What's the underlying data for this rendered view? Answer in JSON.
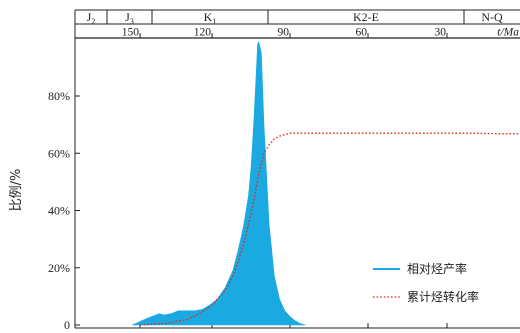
{
  "chart_data": {
    "type": "area",
    "ylabel": "比例/%",
    "x_unit_label": "t/Ma",
    "x_axis_reversed": true,
    "xlim": [
      175,
      0
    ],
    "ylim": [
      0,
      100
    ],
    "x_ticks": [
      150,
      120,
      90,
      60,
      30
    ],
    "y_ticks": [
      {
        "value": 0,
        "label": "0"
      },
      {
        "value": 20,
        "label": "20%"
      },
      {
        "value": 40,
        "label": "40%"
      },
      {
        "value": 60,
        "label": "60%"
      },
      {
        "value": 80,
        "label": "80%"
      }
    ],
    "periods": [
      {
        "base": "J",
        "sub": "2",
        "start": 175,
        "end": 163
      },
      {
        "base": "J",
        "sub": "3",
        "start": 163,
        "end": 145
      },
      {
        "base": "K",
        "sub": "1",
        "start": 145,
        "end": 100
      },
      {
        "base": "K2-E",
        "sub": "",
        "start": 100,
        "end": 23
      },
      {
        "base": "N-Q",
        "sub": "",
        "start": 23,
        "end": 0
      }
    ],
    "series": [
      {
        "name": "相对烃产率",
        "type": "area",
        "color": "#1aa9e0",
        "x": [
          153,
          148,
          145,
          142,
          140,
          137,
          134,
          130,
          127,
          124,
          121,
          118,
          115,
          112,
          110,
          108,
          106,
          105,
          104,
          103,
          102.5,
          102,
          101,
          100,
          98,
          96,
          94,
          92,
          90,
          88,
          86,
          84
        ],
        "y": [
          0,
          2,
          3,
          4,
          3.5,
          4,
          5,
          5,
          5,
          5.5,
          7,
          9,
          13,
          19,
          26,
          34,
          45,
          55,
          70,
          88,
          98,
          99,
          95,
          70,
          35,
          17,
          9,
          5,
          3,
          1.5,
          0.5,
          0
        ]
      },
      {
        "name": "累计烃转化率",
        "type": "line",
        "style": "dotted",
        "color": "#e0281c",
        "x": [
          150,
          140,
          130,
          125,
          120,
          115,
          112,
          110,
          107,
          104,
          102,
          100,
          98,
          96,
          94,
          92,
          90,
          85,
          80,
          70,
          60,
          50,
          40,
          30,
          20,
          10,
          2
        ],
        "y": [
          0,
          0.5,
          2,
          4,
          7,
          12,
          17,
          22,
          31,
          43,
          53,
          60,
          63,
          65,
          66,
          66.5,
          67,
          67,
          67,
          67,
          67,
          67,
          67,
          67,
          67,
          66.8,
          66.8
        ]
      }
    ],
    "legend_position": "bottom-right"
  }
}
